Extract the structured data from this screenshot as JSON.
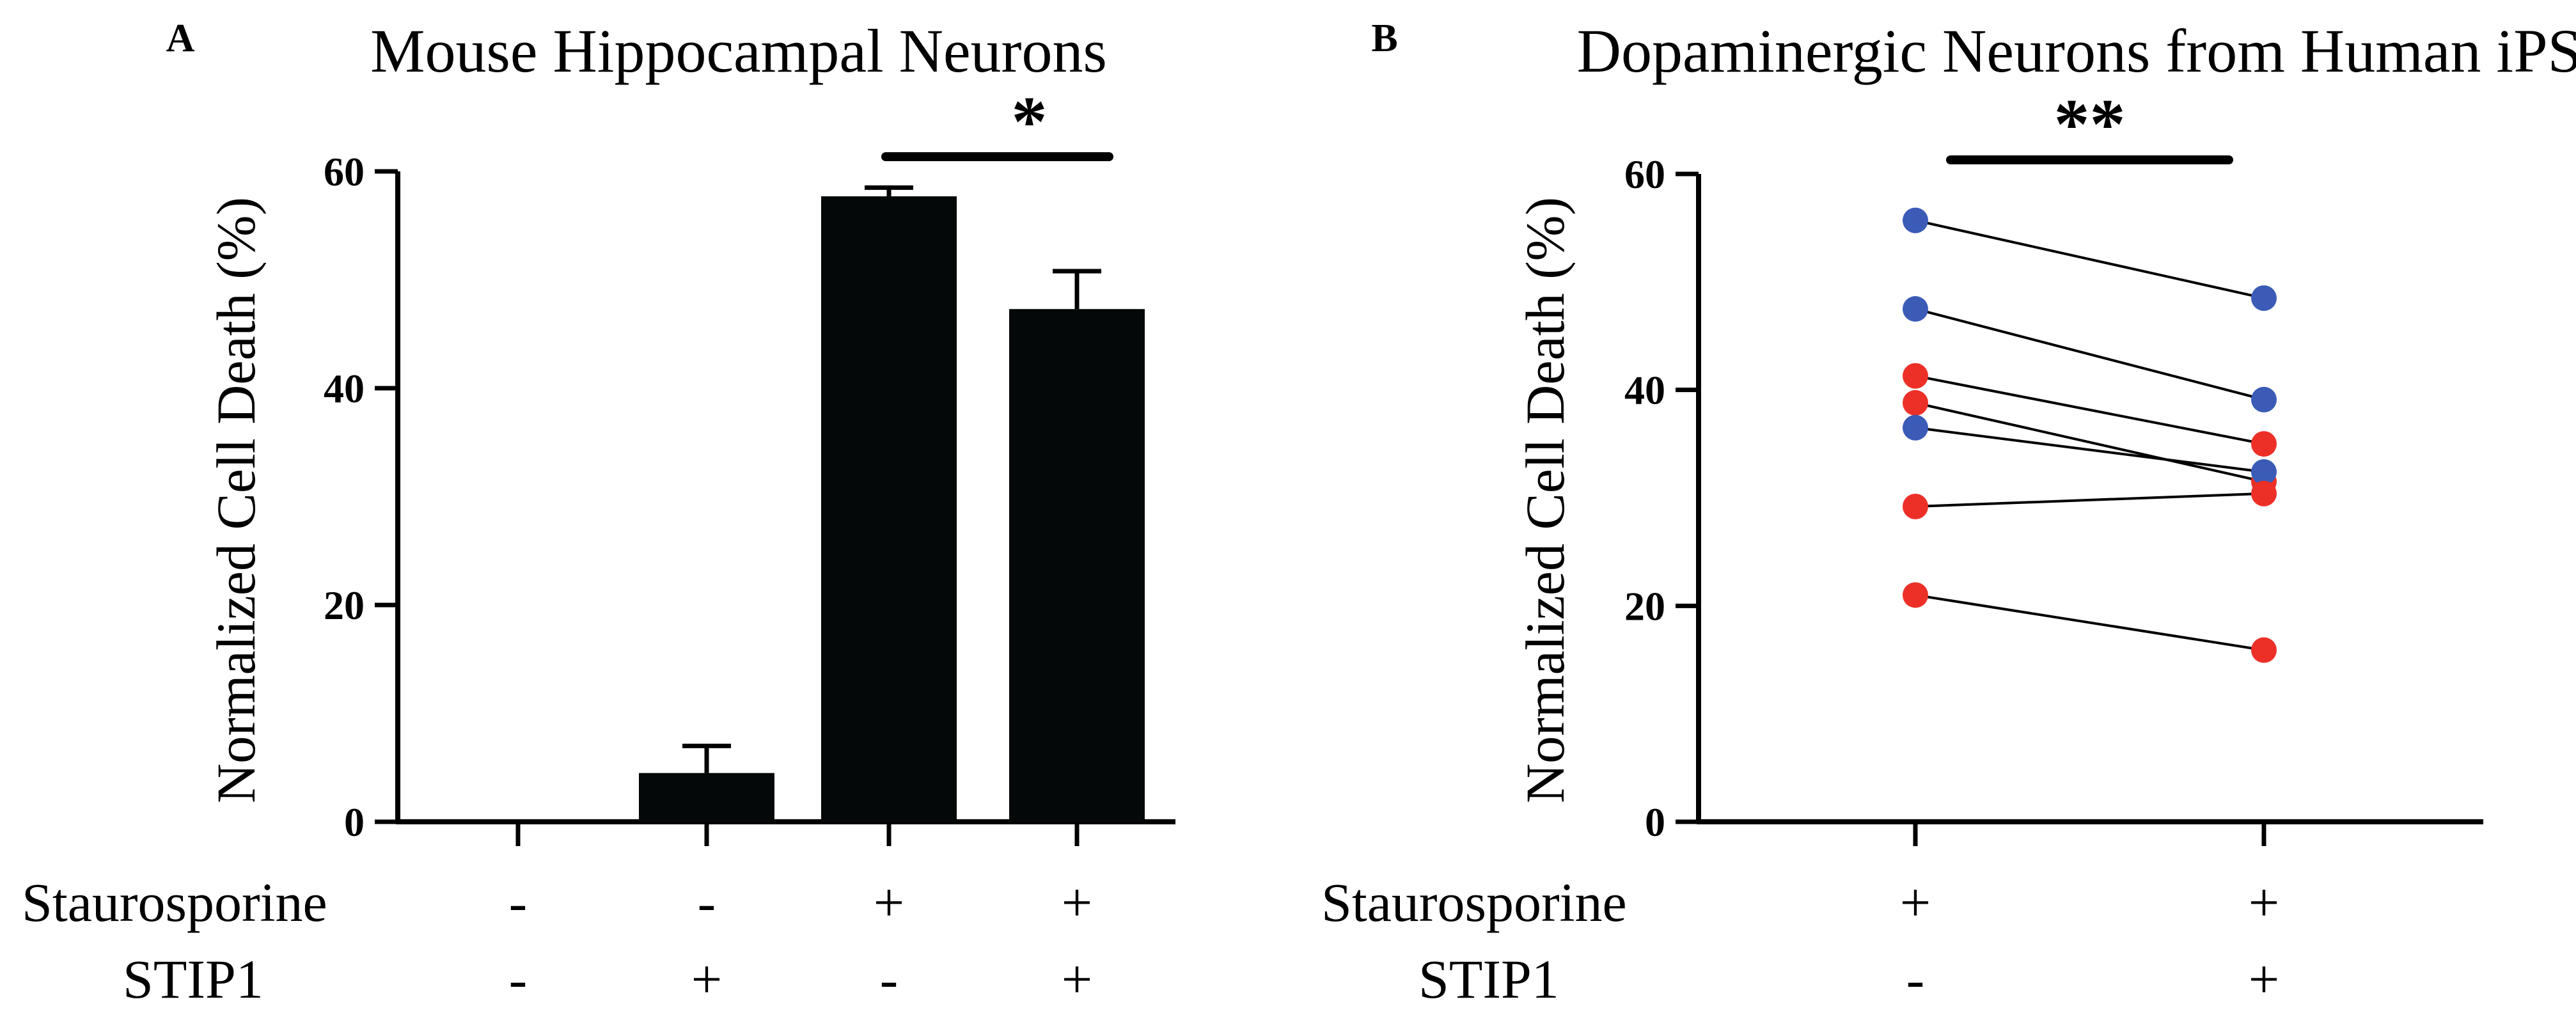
{
  "chart_data": [
    {
      "panel": "A",
      "type": "bar",
      "title": "Mouse Hippocampal Neurons",
      "ylabel": "Normalized Cell Death (%)",
      "xlabel": "",
      "ylim": [
        0,
        60
      ],
      "yticks": [
        "0",
        "20",
        "40",
        "60"
      ],
      "categories": [
        "-/-",
        "-/+",
        "+/-",
        "+/+"
      ],
      "values": [
        0,
        4.5,
        57.7,
        47.3
      ],
      "errors": [
        0,
        2.5,
        0.8,
        3.5
      ],
      "bar_color": "#050808",
      "condition_rows": [
        {
          "label": "Staurosporine",
          "values": [
            "-",
            "-",
            "+",
            "+"
          ]
        },
        {
          "label": "STIP1",
          "values": [
            "-",
            "+",
            "-",
            "+"
          ]
        }
      ],
      "significance": [
        {
          "between": [
            2,
            3
          ],
          "label": "*"
        }
      ]
    },
    {
      "panel": "B",
      "type": "line",
      "title": "Dopaminergic Neurons from Human iPSCs",
      "ylabel": "Normalized Cell Death (%)",
      "xlabel": "",
      "ylim": [
        0,
        60
      ],
      "yticks": [
        "0",
        "20",
        "40",
        "60"
      ],
      "categories": [
        "+/-",
        "+/+"
      ],
      "series": [
        {
          "color": "#3b5bb7",
          "values": [
            55.7,
            48.5
          ]
        },
        {
          "color": "#3b5bb7",
          "values": [
            47.5,
            39.1
          ]
        },
        {
          "color": "#ec3028",
          "values": [
            41.3,
            35.0
          ]
        },
        {
          "color": "#ec3028",
          "values": [
            38.8,
            31.5
          ]
        },
        {
          "color": "#3b5bb7",
          "values": [
            36.5,
            32.4
          ]
        },
        {
          "color": "#ec3028",
          "values": [
            29.2,
            30.4
          ]
        },
        {
          "color": "#ec3028",
          "values": [
            21.0,
            15.9
          ]
        }
      ],
      "condition_rows": [
        {
          "label": "Staurosporine",
          "values": [
            "+",
            "+"
          ]
        },
        {
          "label": "STIP1",
          "values": [
            "-",
            "+"
          ]
        }
      ],
      "significance": [
        {
          "between": [
            0,
            1
          ],
          "label": "**"
        }
      ]
    }
  ]
}
